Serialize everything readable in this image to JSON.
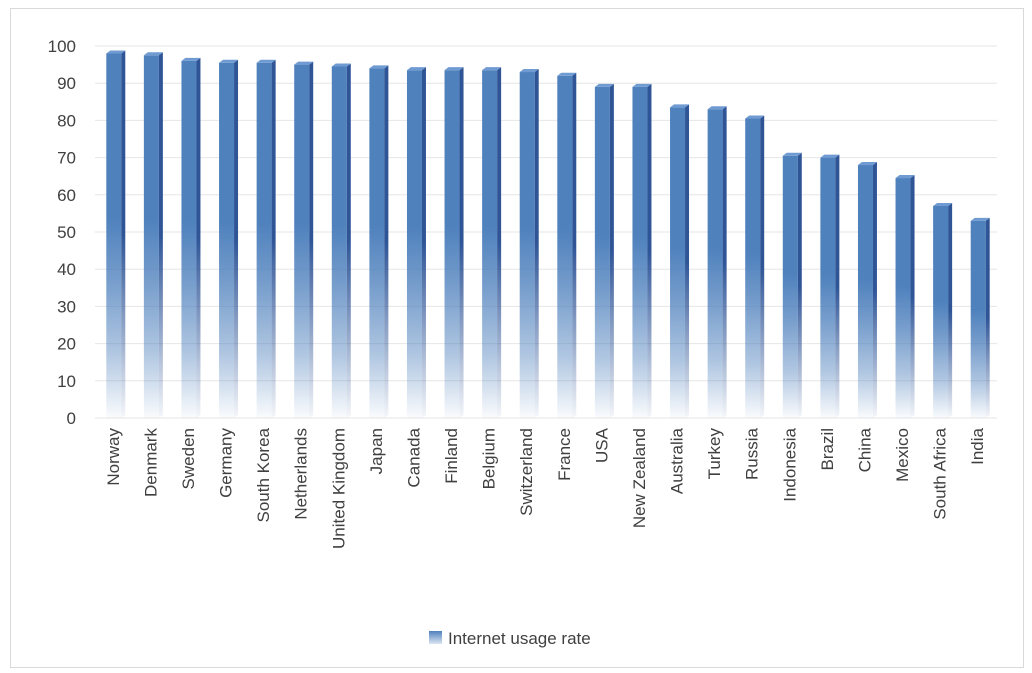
{
  "chart_data": {
    "type": "bar",
    "categories": [
      "Norway",
      "Denmark",
      "Sweden",
      "Germany",
      "South Korea",
      "Netherlands",
      "United Kingdom",
      "Japan",
      "Canada",
      "Finland",
      "Belgium",
      "Switzerland",
      "France",
      "USA",
      "New Zealand",
      "Australia",
      "Turkey",
      "Russia",
      "Indonesia",
      "Brazil",
      "China",
      "Mexico",
      "South Africa",
      "India"
    ],
    "series": [
      {
        "name": "Internet usage rate",
        "values": [
          98,
          97.5,
          96,
          95.5,
          95.5,
          95,
          94.5,
          94,
          93.5,
          93.5,
          93.5,
          93,
          92,
          89,
          89,
          83.5,
          83,
          80.5,
          70.5,
          70,
          68,
          64.5,
          57,
          53
        ]
      }
    ],
    "ylim": [
      0,
      100
    ],
    "yticks": [
      0,
      10,
      20,
      30,
      40,
      50,
      60,
      70,
      80,
      90,
      100
    ],
    "grid": true,
    "legend_position": "bottom",
    "colors": {
      "bar": "#4f81bd",
      "bar_side": "#2f5597",
      "grid": "#e6e6e6",
      "text": "#404040"
    }
  }
}
